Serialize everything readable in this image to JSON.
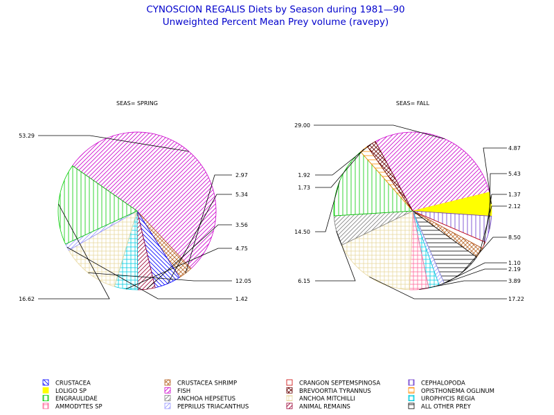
{
  "title_line1": "CYNOSCION REGALIS Diets by Season during 1981—90",
  "title_line2": "Unweighted Percent Mean Prey volume (ravepy)",
  "legend": [
    {
      "name": "CRUSTACEA",
      "color": "#0000ff",
      "pattern": "diag-left"
    },
    {
      "name": "CRUSTACEA SHRIMP",
      "color": "#b8682a",
      "pattern": "cross-diag"
    },
    {
      "name": "CRANGON SEPTEMSPINOSA",
      "color": "#cc0000",
      "pattern": "empty"
    },
    {
      "name": "CEPHALOPODA",
      "color": "#6633cc",
      "pattern": "vertical"
    },
    {
      "name": "LOLIGO SP",
      "color": "#ffff00",
      "pattern": "solid"
    },
    {
      "name": "FISH",
      "color": "#cc00cc",
      "pattern": "diag-right"
    },
    {
      "name": "BREVOORTIA TYRANNUS",
      "color": "#660000",
      "pattern": "cross-diag"
    },
    {
      "name": "OPISTHONEMA OGLINUM",
      "color": "#ff8800",
      "pattern": "horizontal"
    },
    {
      "name": "ENGRAULIDAE",
      "color": "#00cc00",
      "pattern": "vertical"
    },
    {
      "name": "ANCHOA HEPSETUS",
      "color": "#808080",
      "pattern": "diag-right"
    },
    {
      "name": "ANCHOA MITCHILLI",
      "color": "#e8d8a0",
      "pattern": "grid"
    },
    {
      "name": "UROPHYCIS REGIA",
      "color": "#00ccdd",
      "pattern": "grid"
    },
    {
      "name": "AMMODYTES SP",
      "color": "#ff6699",
      "pattern": "grid"
    },
    {
      "name": "PEPRILUS TRIACANTHUS",
      "color": "#9999ff",
      "pattern": "diag-right"
    },
    {
      "name": "ANIMAL REMAINS",
      "color": "#990033",
      "pattern": "diag-right"
    },
    {
      "name": "ALL OTHER PREY",
      "color": "#000000",
      "pattern": "horizontal"
    }
  ],
  "chart_data": [
    {
      "type": "pie",
      "title": "SEAS= SPRING",
      "slices": [
        {
          "label": "FISH",
          "value": 53.29,
          "label_text": "53.29"
        },
        {
          "label": "CRUSTACEA SHRIMP",
          "value": 2.97,
          "label_text": "2.97"
        },
        {
          "label": "CRUSTACEA",
          "value": 5.34,
          "label_text": "5.34"
        },
        {
          "label": "ANIMAL REMAINS",
          "value": 3.56,
          "label_text": "3.56"
        },
        {
          "label": "UROPHYCIS REGIA",
          "value": 4.75,
          "label_text": "4.75"
        },
        {
          "label": "ANCHOA MITCHILLI",
          "value": 12.05,
          "label_text": "12.05"
        },
        {
          "label": "PEPRILUS TRIACANTHUS",
          "value": 1.42,
          "label_text": "1.42"
        },
        {
          "label": "ENGRAULIDAE",
          "value": 16.62,
          "label_text": "16.62"
        }
      ]
    },
    {
      "type": "pie",
      "title": "SEAS= FALL",
      "slices": [
        {
          "label": "FISH",
          "value": 29.0,
          "label_text": "29.00"
        },
        {
          "label": "LOLIGO SP",
          "value": 4.87,
          "label_text": "4.87"
        },
        {
          "label": "CEPHALOPODA",
          "value": 5.43,
          "label_text": "5.43"
        },
        {
          "label": "CRANGON SEPTEMSPINOSA",
          "value": 1.37,
          "label_text": "1.37"
        },
        {
          "label": "CRUSTACEA SHRIMP",
          "value": 2.12,
          "label_text": "2.12"
        },
        {
          "label": "ALL OTHER PREY",
          "value": 8.5,
          "label_text": "8.50"
        },
        {
          "label": "PEPRILUS TRIACANTHUS",
          "value": 1.1,
          "label_text": "1.10"
        },
        {
          "label": "UROPHYCIS REGIA",
          "value": 2.19,
          "label_text": "2.19"
        },
        {
          "label": "AMMODYTES SP",
          "value": 3.89,
          "label_text": "3.89"
        },
        {
          "label": "ANCHOA MITCHILLI",
          "value": 17.22,
          "label_text": "17.22"
        },
        {
          "label": "ANCHOA HEPSETUS",
          "value": 6.15,
          "label_text": "6.15"
        },
        {
          "label": "ENGRAULIDAE",
          "value": 14.5,
          "label_text": "14.50"
        },
        {
          "label": "OPISTHONEMA OGLINUM",
          "value": 1.73,
          "label_text": "1.73"
        },
        {
          "label": "BREVOORTIA TYRANNUS",
          "value": 1.92,
          "label_text": "1.92"
        }
      ]
    }
  ]
}
